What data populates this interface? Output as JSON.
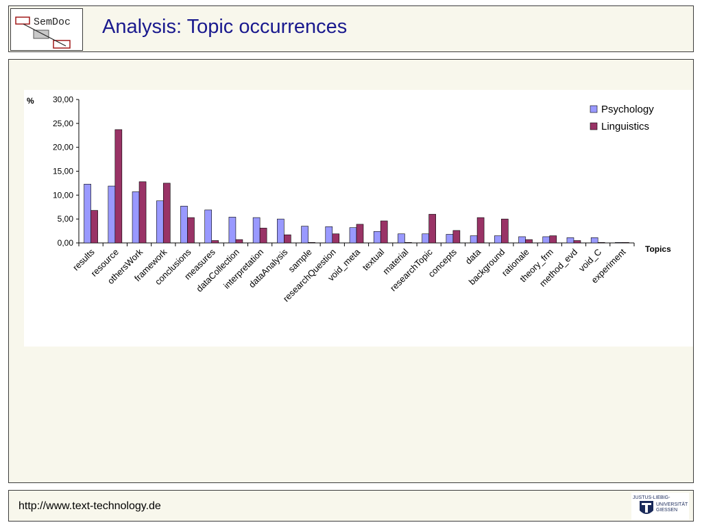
{
  "header": {
    "title": "Analysis: Topic occurrences",
    "logo_text": "SemDoc"
  },
  "footer": {
    "url": "http://www.text-technology.de",
    "university_logo_lines": [
      "JUSTUS-LIEBIG-",
      "UNIVERSITÄT",
      "GIESSEN"
    ]
  },
  "chart_data": {
    "type": "bar",
    "ylabel": "%",
    "xlabel": "Topics",
    "ylim": [
      0,
      30
    ],
    "yticks": [
      "0,00",
      "5,00",
      "10,00",
      "15,00",
      "20,00",
      "25,00",
      "30,00"
    ],
    "categories": [
      "results",
      "resource",
      "othersWork",
      "framework",
      "conclusions",
      "measures",
      "dataCollection",
      "interpretation",
      "dataAnalysis",
      "sample",
      "researchQuestion",
      "void_meta",
      "textual",
      "material",
      "researchTopic",
      "concepts",
      "data",
      "background",
      "rationale",
      "theory_frm",
      "method_evd",
      "void_C",
      "experiment"
    ],
    "series": [
      {
        "name": "Psychology",
        "color": "#9999ff",
        "values": [
          12.3,
          11.9,
          10.7,
          8.8,
          7.7,
          6.9,
          5.4,
          5.3,
          5.0,
          3.5,
          3.4,
          3.2,
          2.4,
          1.9,
          1.9,
          1.8,
          1.5,
          1.5,
          1.3,
          1.3,
          1.1,
          1.1,
          0.1
        ]
      },
      {
        "name": "Linguistics",
        "color": "#993366",
        "values": [
          6.8,
          23.7,
          12.8,
          12.5,
          5.3,
          0.5,
          0.7,
          3.1,
          1.7,
          0.1,
          1.9,
          3.9,
          4.6,
          0.1,
          6.0,
          2.6,
          5.3,
          5.0,
          0.7,
          1.5,
          0.5,
          0.1,
          0.1
        ]
      }
    ],
    "legend_position": "top-right",
    "grid": false
  }
}
